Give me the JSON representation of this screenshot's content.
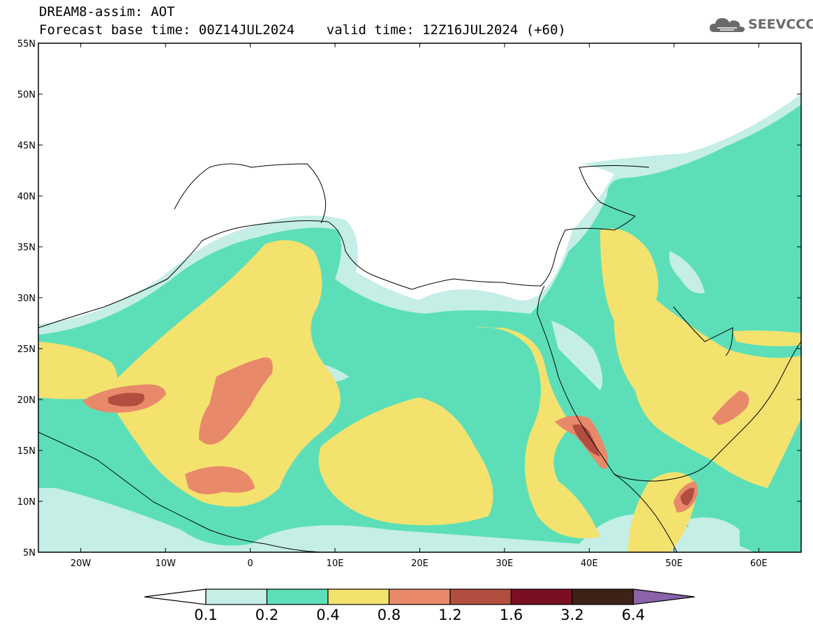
{
  "header": {
    "title_line1": "DREAM8-assim: AOT",
    "title_line2": "Forecast base time: 00Z14JUL2024    valid time: 12Z16JUL2024 (+60)",
    "logo_text": "SEEVCCC"
  },
  "map": {
    "lon_range": [
      -25,
      65
    ],
    "lat_range": [
      5,
      55
    ],
    "lat_ticks": [
      "5N",
      "10N",
      "15N",
      "20N",
      "25N",
      "30N",
      "35N",
      "40N",
      "45N",
      "50N",
      "55N"
    ],
    "lon_ticks": [
      "20W",
      "10W",
      "0",
      "10E",
      "20E",
      "30E",
      "40E",
      "50E",
      "60E"
    ],
    "lon_tick_values": [
      -20,
      -10,
      0,
      10,
      20,
      30,
      40,
      50,
      60
    ],
    "lat_tick_values": [
      5,
      10,
      15,
      20,
      25,
      30,
      35,
      40,
      45,
      50,
      55
    ]
  },
  "colorbar": {
    "labels": [
      "0.1",
      "0.2",
      "0.4",
      "0.8",
      "1.2",
      "1.6",
      "3.2",
      "6.4"
    ],
    "colors": [
      "#c4eee6",
      "#5cdfb8",
      "#f4e26e",
      "#e8896a",
      "#b14e3f",
      "#7a0f24",
      "#3d2217",
      "#8a63a8"
    ],
    "under_color": "#ffffff"
  },
  "colors": {
    "c01": "#c4eee6",
    "c02": "#5cdfb8",
    "c04": "#f4e26e",
    "c08": "#e8896a",
    "c12": "#b14e3f",
    "c16": "#7a0f24"
  }
}
